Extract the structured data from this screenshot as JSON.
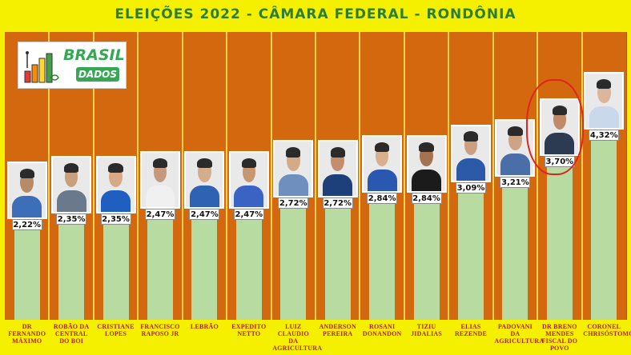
{
  "logo": {
    "brand_line1": "BRASIL",
    "brand_line2": "DADOS"
  },
  "chart_data": {
    "type": "bar",
    "title": "ELEIÇÕES 2022 - CÂMARA FEDERAL - RONDÔNIA",
    "xlabel": "",
    "ylabel": "",
    "ylim": [
      0,
      5.2
    ],
    "grid": false,
    "legend": "none",
    "highlighted_category": "DR BRENO MENDES FISCAL DO POVO",
    "categories": [
      "DR FERNANDO MÁXIMO",
      "ROBÃO DA CENTRAL DO BOI",
      "CRISTIANE LOPES",
      "FRANCISCO RAPOSO JR",
      "LEBRÃO",
      "EXPEDITO NETTO",
      "LUIZ CLAUDIO DA AGRICULTURA",
      "ANDERSON PEREIRA",
      "ROSANI DONANDON",
      "TIZIU JIDALIAS",
      "ELIAS REZENDE",
      "PADOVANI DA AGRICULTURA",
      "DR BRENO MENDES FISCAL DO POVO",
      "CORONEL CHRISÓSTOMO"
    ],
    "values": [
      2.22,
      2.35,
      2.35,
      2.47,
      2.47,
      2.47,
      2.72,
      2.72,
      2.84,
      2.84,
      3.09,
      3.21,
      3.7,
      4.32
    ],
    "value_labels": [
      "2,22%",
      "2,35%",
      "2,35%",
      "2,47%",
      "2,47%",
      "2,47%",
      "2,72%",
      "2,72%",
      "2,84%",
      "2,84%",
      "3,09%",
      "3,21%",
      "3,70%",
      "4,32%"
    ],
    "colors": {
      "background": "#f5f000",
      "plot_background": "#d4680e",
      "bar": "#b7dba0",
      "separator": "#f6d04d",
      "title": "#2e7d32",
      "category_label": "#b4231c",
      "highlight": "#e0231d"
    }
  }
}
